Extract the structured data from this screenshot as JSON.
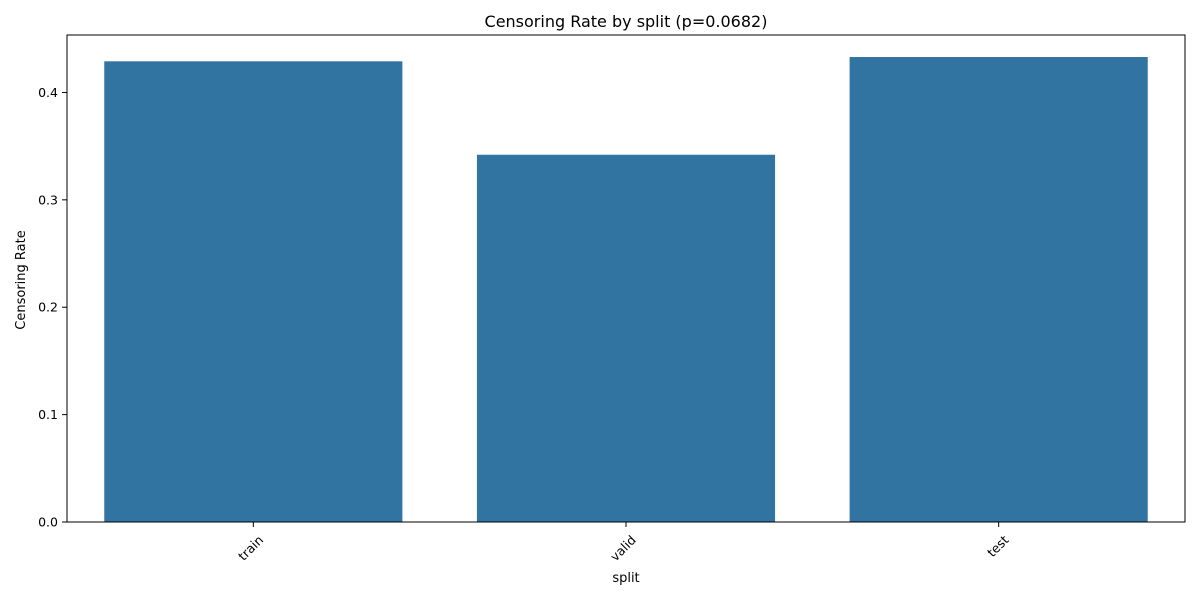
{
  "chart_data": {
    "type": "bar",
    "title": "Censoring Rate by split (p=0.0682)",
    "xlabel": "split",
    "ylabel": "Censoring Rate",
    "categories": [
      "train",
      "valid",
      "test"
    ],
    "values": [
      0.429,
      0.342,
      0.433
    ],
    "ylim": [
      0,
      0.4535
    ],
    "yticks": [
      0.0,
      0.1,
      0.2,
      0.3,
      0.4
    ],
    "ytick_labels": [
      "0.0",
      "0.1",
      "0.2",
      "0.3",
      "0.4"
    ],
    "bar_color": "#3274a1",
    "grid": false,
    "legend": "none",
    "xtick_rotation": "45 degrees"
  }
}
